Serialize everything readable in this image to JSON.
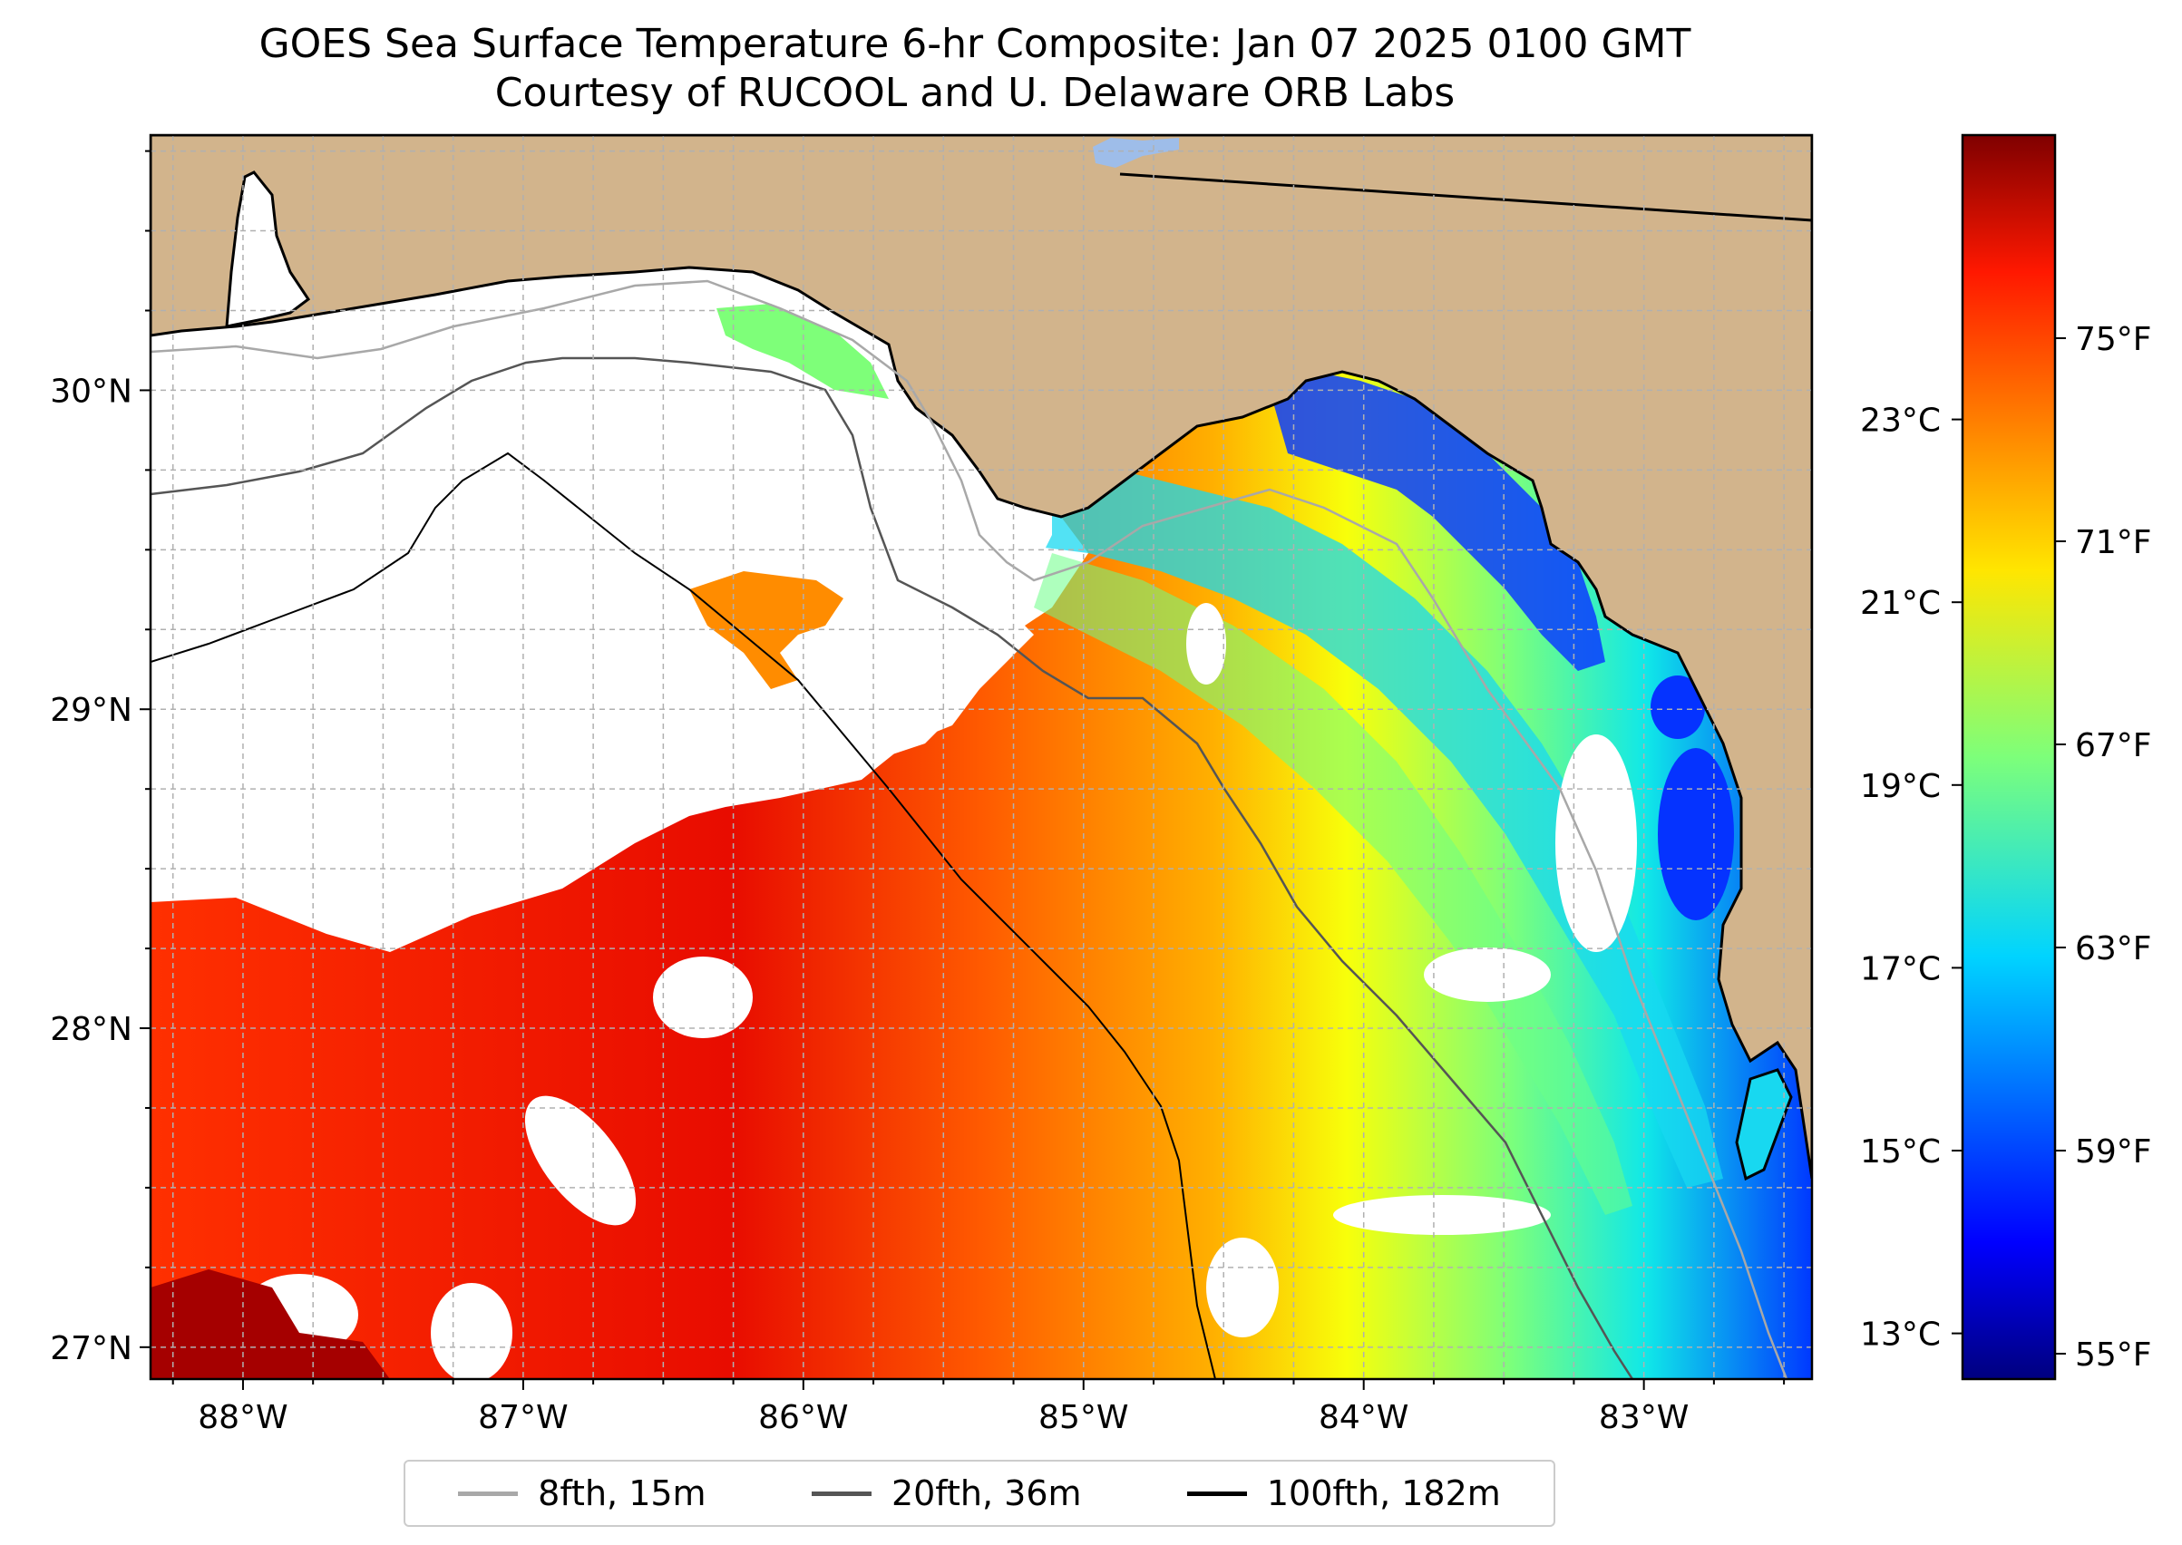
{
  "title": {
    "line1": "GOES Sea Surface Temperature 6-hr Composite: Jan 07 2025 0100 GMT",
    "line2": "Courtesy of RUCOOL and U. Delaware ORB Labs"
  },
  "map": {
    "lat_range": [
      26.9,
      30.8
    ],
    "lon_range": [
      -88.33,
      -82.4
    ],
    "lat_ticks": [
      {
        "value": 30,
        "label": "30°N"
      },
      {
        "value": 29,
        "label": "29°N"
      },
      {
        "value": 28,
        "label": "28°N"
      },
      {
        "value": 27,
        "label": "27°N"
      }
    ],
    "lon_ticks": [
      {
        "value": -88,
        "label": "88°W"
      },
      {
        "value": -87,
        "label": "87°W"
      },
      {
        "value": -86,
        "label": "86°W"
      },
      {
        "value": -85,
        "label": "85°W"
      },
      {
        "value": -84,
        "label": "84°W"
      },
      {
        "value": -83,
        "label": "83°W"
      }
    ],
    "colors": {
      "land": "#d2b48c",
      "ocean_nodata": "#ffffff",
      "gridline": "#b0b0b0"
    }
  },
  "colorbar": {
    "colormap": "jet",
    "fahrenheit_ticks": [
      {
        "value": 75,
        "label": "75°F"
      },
      {
        "value": 71,
        "label": "71°F"
      },
      {
        "value": 67,
        "label": "67°F"
      },
      {
        "value": 63,
        "label": "63°F"
      },
      {
        "value": 59,
        "label": "59°F"
      },
      {
        "value": 55,
        "label": "55°F"
      }
    ],
    "celsius_ticks": [
      {
        "value": 23,
        "label": "23°C"
      },
      {
        "value": 21,
        "label": "21°C"
      },
      {
        "value": 19,
        "label": "19°C"
      },
      {
        "value": 17,
        "label": "17°C"
      },
      {
        "value": 15,
        "label": "15°C"
      },
      {
        "value": 13,
        "label": "13°C"
      }
    ],
    "range_f": [
      54.5,
      79.0
    ]
  },
  "legend": {
    "items": [
      {
        "label": "8fth, 15m",
        "color": "#a8a8a8"
      },
      {
        "label": "20fth, 36m",
        "color": "#555555"
      },
      {
        "label": "100fth, 182m",
        "color": "#000000"
      }
    ]
  }
}
